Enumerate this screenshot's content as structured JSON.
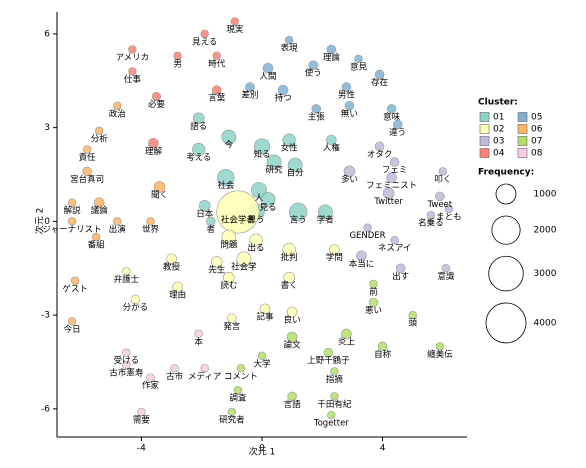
{
  "chart_data": {
    "type": "bubble",
    "xlabel": "次元 1",
    "ylabel": "次元 2",
    "xlim": [
      -6.8,
      6.8
    ],
    "ylim": [
      -6.9,
      6.7
    ],
    "xticks": [
      -4,
      0,
      4
    ],
    "yticks": [
      -6,
      -3,
      0,
      3,
      6
    ],
    "grid": false,
    "legend_title": "Cluster:",
    "size_legend": {
      "title": "Frequency:",
      "values": [
        1000,
        2000,
        3000,
        4000
      ]
    },
    "series": [
      {
        "name": "01",
        "color": "#8dd3c7",
        "labels": [
          "語る",
          "女性",
          "今",
          "考える",
          "知る",
          "人権",
          "研究",
          "自分",
          "社会",
          "人",
          "見る",
          "日本",
          "思う",
          "言う",
          "学者",
          "者"
        ],
        "x": [
          -2.1,
          0.9,
          -1.1,
          -2.1,
          0.0,
          2.3,
          0.4,
          1.1,
          -1.2,
          -0.1,
          0.2,
          -1.9,
          -0.2,
          1.2,
          2.1,
          -1.7
        ],
        "values": [
          3.3,
          2.6,
          2.7,
          2.3,
          2.4,
          2.6,
          1.9,
          1.8,
          1.4,
          1.0,
          0.7,
          0.5,
          0.3,
          0.3,
          0.3,
          0.0
        ],
        "sizes": [
          300,
          400,
          500,
          400,
          600,
          250,
          500,
          500,
          700,
          600,
          500,
          300,
          700,
          800,
          500,
          200
        ]
      },
      {
        "name": "02",
        "color": "#ffffb3",
        "labels": [
          "社会学者",
          "問題",
          "出る",
          "先生",
          "社会学",
          "批判",
          "書く",
          "読む",
          "教授",
          "理由",
          "学問",
          "分かる",
          "発言",
          "記事",
          "良い",
          "弁護士"
        ],
        "x": [
          -0.8,
          -1.1,
          -0.2,
          -1.5,
          -0.6,
          0.9,
          0.9,
          -1.1,
          -3.0,
          -2.8,
          2.4,
          -4.2,
          -1.0,
          0.1,
          1.0,
          -4.5
        ],
        "values": [
          0.3,
          -0.5,
          -0.6,
          -1.3,
          -1.2,
          -0.9,
          -1.8,
          -1.8,
          -1.2,
          -2.1,
          -0.9,
          -2.5,
          -3.1,
          -2.8,
          -2.9,
          -1.6
        ],
        "sizes": [
          4500,
          500,
          400,
          300,
          500,
          400,
          300,
          300,
          250,
          250,
          250,
          200,
          200,
          250,
          250,
          150
        ]
      },
      {
        "name": "03",
        "color": "#bebada",
        "labels": [
          "オタク",
          "フェミ",
          "多い",
          "フェミニスト",
          "Twitter",
          "叩く",
          "Tweet",
          "まとも",
          "名乗る",
          "GENDER",
          "ネスアイ",
          "本当に",
          "出す",
          "意識"
        ],
        "x": [
          3.9,
          4.4,
          2.9,
          4.3,
          4.2,
          6.0,
          5.9,
          6.2,
          5.6,
          3.5,
          4.4,
          3.3,
          4.6,
          6.1
        ],
        "values": [
          2.4,
          1.9,
          1.6,
          1.4,
          0.9,
          1.6,
          0.8,
          0.4,
          0.2,
          -0.2,
          -0.6,
          -1.1,
          -1.5,
          -1.5
        ],
        "sizes": [
          200,
          200,
          300,
          250,
          300,
          150,
          200,
          150,
          150,
          150,
          150,
          250,
          200,
          150
        ]
      },
      {
        "name": "04",
        "color": "#fb8072",
        "labels": [
          "現実",
          "アメリカ",
          "見える",
          "時代",
          "男",
          "仕事",
          "必要",
          "言葉",
          "理解"
        ],
        "x": [
          -0.9,
          -4.3,
          -1.9,
          -1.5,
          -2.8,
          -4.3,
          -3.5,
          -1.5,
          -3.6
        ],
        "values": [
          6.4,
          5.5,
          6.0,
          5.3,
          5.3,
          4.8,
          4.0,
          4.2,
          2.5
        ],
        "sizes": [
          150,
          150,
          150,
          150,
          150,
          150,
          180,
          200,
          250
        ]
      },
      {
        "name": "05",
        "color": "#80b1d3",
        "labels": [
          "表現",
          "理論",
          "意見",
          "使う",
          "人間",
          "存在",
          "男性",
          "差別",
          "持つ",
          "主張",
          "無い",
          "意味",
          "違う"
        ],
        "x": [
          0.9,
          2.3,
          3.2,
          1.7,
          0.2,
          3.9,
          2.8,
          -0.4,
          0.7,
          1.8,
          2.9,
          4.3,
          4.5
        ],
        "values": [
          5.8,
          5.5,
          5.2,
          5.0,
          4.9,
          4.7,
          4.3,
          4.3,
          4.2,
          3.6,
          3.7,
          3.6,
          3.1
        ],
        "sizes": [
          150,
          200,
          150,
          200,
          250,
          200,
          200,
          200,
          250,
          200,
          200,
          200,
          200
        ]
      },
      {
        "name": "06",
        "color": "#fdb462",
        "labels": [
          "政治",
          "分析",
          "責任",
          "宮台真司",
          "聞く",
          "解説",
          "議論",
          "ジャーナリスト",
          "出演",
          "世界",
          "番組",
          "ゲスト",
          "今日"
        ],
        "x": [
          -4.8,
          -5.4,
          -5.8,
          -5.8,
          -3.4,
          -6.3,
          -5.4,
          -6.3,
          -4.8,
          -3.7,
          -5.5,
          -6.2,
          -6.3
        ],
        "values": [
          3.7,
          2.9,
          2.3,
          1.6,
          1.1,
          0.6,
          0.6,
          0.0,
          0.0,
          0.0,
          -0.5,
          -1.9,
          -3.2
        ],
        "sizes": [
          150,
          150,
          150,
          200,
          300,
          150,
          250,
          150,
          150,
          150,
          150,
          150,
          150
        ]
      },
      {
        "name": "07",
        "color": "#b3de69",
        "labels": [
          "前",
          "悪い",
          "頭",
          "炎上",
          "論文",
          "自称",
          "纏美伝",
          "上野千鶴子",
          "大学",
          "指摘",
          "コメント",
          "千田有紀",
          "調査",
          "言語",
          "研究者",
          "Togetter"
        ],
        "x": [
          3.7,
          3.7,
          5.0,
          2.8,
          1.0,
          4.0,
          5.9,
          2.2,
          0.0,
          2.4,
          -0.7,
          2.4,
          -0.8,
          1.0,
          -1.0,
          2.3
        ],
        "values": [
          -2.0,
          -2.6,
          -3.0,
          -3.6,
          -3.7,
          -4.0,
          -4.0,
          -4.2,
          -4.3,
          -4.8,
          -4.7,
          -5.6,
          -5.4,
          -5.6,
          -6.1,
          -6.2
        ],
        "sizes": [
          150,
          200,
          150,
          250,
          250,
          200,
          150,
          200,
          150,
          150,
          150,
          150,
          150,
          200,
          150,
          150
        ]
      },
      {
        "name": "08",
        "color": "#fccde5",
        "labels": [
          "本",
          "受ける",
          "古市憲寿",
          "作家",
          "古市",
          "メディア",
          "需要"
        ],
        "x": [
          -2.1,
          -4.5,
          -4.5,
          -3.7,
          -2.9,
          -1.9,
          -4.0
        ],
        "values": [
          -3.6,
          -4.2,
          -4.6,
          -5.0,
          -4.7,
          -4.7,
          -6.1
        ],
        "sizes": [
          150,
          150,
          150,
          150,
          150,
          150,
          150
        ]
      }
    ]
  }
}
